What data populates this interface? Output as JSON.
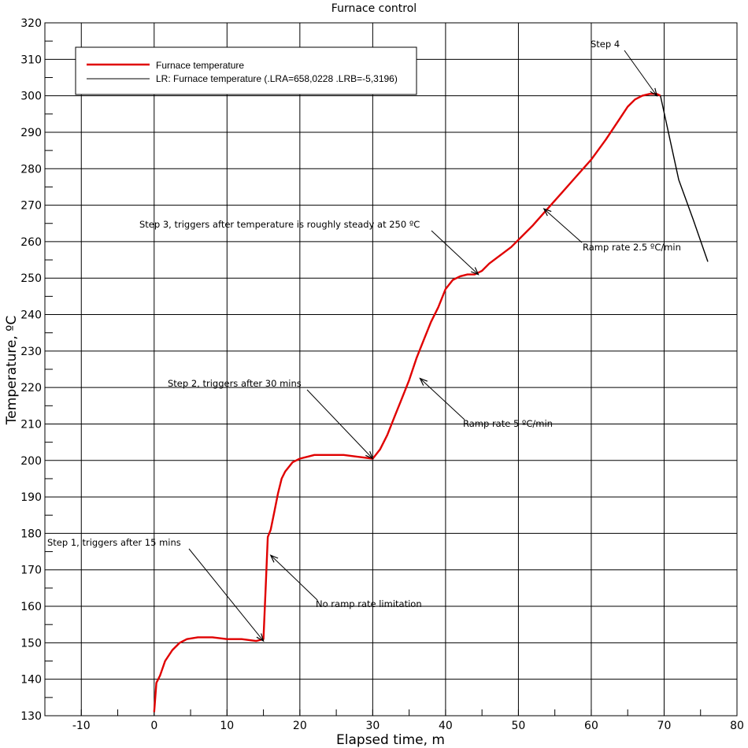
{
  "chart_data": {
    "type": "line",
    "title": "Furnace control",
    "xlabel": "Elapsed time, m",
    "ylabel": "Temperature, ºC",
    "xlim": [
      -15,
      80
    ],
    "ylim": [
      130,
      320
    ],
    "x_ticks": [
      -10,
      0,
      10,
      20,
      30,
      40,
      50,
      60,
      70,
      80
    ],
    "y_ticks": [
      130,
      140,
      150,
      160,
      170,
      180,
      190,
      200,
      210,
      220,
      230,
      240,
      250,
      260,
      270,
      280,
      290,
      300,
      310,
      320
    ],
    "grid": true,
    "legend": {
      "placement": "top-left",
      "entries": [
        {
          "label": "Furnace temperature",
          "color": "#e00000"
        },
        {
          "label": "LR: Furnace temperature (.LRA=658,0228 .LRB=-5,3196)",
          "color": "#000000"
        }
      ]
    },
    "series": [
      {
        "name": "Furnace temperature",
        "color": "#e00000",
        "x": [
          0,
          0.3,
          0.8,
          1.5,
          2.5,
          3.5,
          4.5,
          6,
          8,
          10,
          12,
          14,
          15,
          15.3,
          15.6,
          16,
          16.5,
          17,
          17.5,
          18,
          19,
          20,
          21,
          22,
          24,
          26,
          28,
          30,
          31,
          32,
          33,
          34,
          35,
          36,
          37,
          38,
          39,
          40,
          41,
          42,
          43,
          44,
          45,
          46,
          47,
          48,
          49,
          50,
          52,
          54,
          56,
          58,
          60,
          62,
          64,
          65,
          66,
          67,
          68,
          69,
          69.5
        ],
        "y": [
          131,
          139,
          141,
          145,
          148,
          150,
          151,
          151.5,
          151.5,
          151,
          151,
          150.5,
          151,
          165,
          179,
          181,
          186,
          191,
          195,
          197,
          199.5,
          200.5,
          201,
          201.5,
          201.5,
          201.5,
          201,
          200.5,
          203,
          207,
          212,
          217,
          222,
          228,
          233,
          238,
          242,
          247,
          249.5,
          250.5,
          251,
          251,
          252,
          254,
          255.5,
          257,
          258.5,
          260.5,
          264.5,
          269,
          273.5,
          278,
          282.5,
          288,
          294,
          297,
          299,
          300,
          300.5,
          300.5,
          300
        ]
      },
      {
        "name": "LR: Furnace temperature (.LRA=658,0228 .LRB=-5,3196)",
        "color": "#000000",
        "x": [
          69.5,
          72,
          74,
          76
        ],
        "y": [
          300,
          277,
          266,
          254.5
        ]
      }
    ],
    "annotations": [
      {
        "text": "Step 1, triggers after 15 mins",
        "points_to": [
          15,
          150.5
        ]
      },
      {
        "text": "No ramp rate limitation",
        "points_to": [
          16,
          174
        ]
      },
      {
        "text": "Step 2, triggers after 30 mins",
        "points_to": [
          30,
          200.5
        ]
      },
      {
        "text": "Ramp rate 5 ºC/min",
        "points_to": [
          36.5,
          222.5
        ]
      },
      {
        "text": "Step 3, triggers after temperature  is roughly steady at 250 ºC",
        "points_to": [
          44.5,
          251
        ]
      },
      {
        "text": "Ramp rate 2.5 ºC/min",
        "points_to": [
          53.5,
          269
        ]
      },
      {
        "text": "Step 4",
        "points_to": [
          69,
          300
        ]
      }
    ]
  }
}
